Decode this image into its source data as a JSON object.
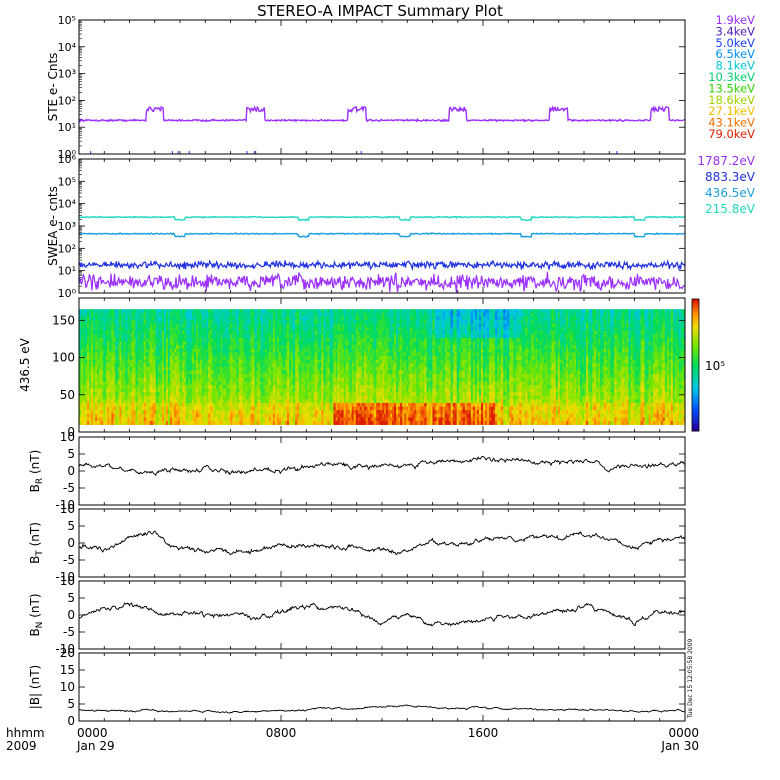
{
  "title": "STEREO-A IMPACT Summary Plot",
  "stamp": "Tue Dec 15 12:05:58 2009",
  "chart_data": {
    "type": "line",
    "x_unit": "hhmm",
    "x_year": "2009",
    "x_ticks": [
      {
        "time": "0000",
        "date": "Jan 29"
      },
      {
        "time": "0800",
        "date": ""
      },
      {
        "time": "1600",
        "date": ""
      },
      {
        "time": "0000",
        "date": "Jan 30"
      }
    ],
    "x_range_hours": [
      0,
      24
    ],
    "panels": [
      {
        "id": "ste",
        "ylabel": "STE e- Cnts",
        "yscale": "log",
        "ylim": [
          1,
          100000
        ],
        "ytick_labels": [
          "10⁰",
          "10¹",
          "10²",
          "10³",
          "10⁴",
          "10⁵"
        ],
        "legend": [
          {
            "label": "1.9keV",
            "color": "#9b30ff"
          },
          {
            "label": "3.4keV",
            "color": "#5020c0"
          },
          {
            "label": "5.0keV",
            "color": "#1e40ff"
          },
          {
            "label": "6.5keV",
            "color": "#0090ff"
          },
          {
            "label": "8.1keV",
            "color": "#00c8d8"
          },
          {
            "label": "10.3keV",
            "color": "#00d070"
          },
          {
            "label": "13.5keV",
            "color": "#30d000"
          },
          {
            "label": "18.6keV",
            "color": "#a0d000"
          },
          {
            "label": "27.1keV",
            "color": "#f0c000"
          },
          {
            "label": "43.1keV",
            "color": "#f07000"
          },
          {
            "label": "79.0keV",
            "color": "#e02000"
          }
        ],
        "series": [
          {
            "name": "1.9keV",
            "level": 18,
            "noise": 0.05,
            "bumps": [
              3.0,
              7.0,
              11.0,
              15.0,
              19.0,
              23.0
            ],
            "bump_height": 48
          }
        ]
      },
      {
        "id": "swea",
        "ylabel": "SWEA e- cnts",
        "yscale": "log",
        "ylim": [
          1,
          1000000
        ],
        "ytick_labels": [
          "10⁰",
          "10¹",
          "10²",
          "10³",
          "10⁴",
          "10⁵",
          "10⁶"
        ],
        "legend": [
          {
            "label": "1787.2eV",
            "color": "#9b30ff"
          },
          {
            "label": "883.3eV",
            "color": "#1e30e0"
          },
          {
            "label": "436.5eV",
            "color": "#1aa0e0"
          },
          {
            "label": "215.8eV",
            "color": "#20d8c0"
          }
        ],
        "series": [
          {
            "name": "215.8eV",
            "level": 2500,
            "noise": 0.04
          },
          {
            "name": "436.5eV",
            "level": 450,
            "noise": 0.04
          },
          {
            "name": "883.3eV",
            "level": 18,
            "noise": 0.25
          },
          {
            "name": "1787.2eV",
            "level": 3,
            "noise": 0.55
          }
        ]
      },
      {
        "id": "pad",
        "type": "heatmap",
        "ylabel": "436.5 eV",
        "ylim": [
          0,
          180
        ],
        "yticks": [
          0,
          50,
          100,
          150
        ],
        "colorbar_label": "10⁵"
      },
      {
        "id": "br",
        "ylabel_main": "B",
        "ylabel_sub": "R",
        "ylabel_unit": " (nT)",
        "ylim": [
          -10,
          10
        ],
        "yticks": [
          10,
          5,
          0,
          -5,
          -10
        ],
        "series": [
          {
            "hours": [
              0,
              1,
              2,
              3,
              4,
              5,
              6,
              7,
              8,
              9,
              10,
              11,
              12,
              13,
              14,
              15,
              16,
              17,
              18,
              19,
              20,
              21,
              22,
              23,
              24
            ],
            "values": [
              1.5,
              1.8,
              0.5,
              0,
              0.5,
              0.8,
              -0.5,
              0.5,
              0.5,
              1.2,
              2,
              1.5,
              1.5,
              2,
              2.5,
              3,
              3.5,
              3,
              2.5,
              2.5,
              2.5,
              1,
              2,
              2,
              2
            ]
          }
        ]
      },
      {
        "id": "bt",
        "ylabel_main": "B",
        "ylabel_sub": "T",
        "ylabel_unit": " (nT)",
        "ylim": [
          -10,
          10
        ],
        "yticks": [
          10,
          5,
          0,
          -5,
          -10
        ],
        "series": [
          {
            "hours": [
              0,
              1,
              2,
              3,
              4,
              5,
              6,
              7,
              8,
              9,
              10,
              11,
              12,
              13,
              14,
              15,
              16,
              17,
              18,
              19,
              20,
              21,
              22,
              23,
              24
            ],
            "values": [
              -1,
              -2,
              2,
              3,
              -1.5,
              -2,
              -2.5,
              -2,
              -1,
              -0.5,
              -1,
              -1.5,
              -2.5,
              -3,
              0,
              -0.5,
              1,
              1,
              1.5,
              2,
              2.5,
              1.5,
              -1,
              1,
              1
            ]
          }
        ]
      },
      {
        "id": "bn",
        "ylabel_main": "B",
        "ylabel_sub": "N",
        "ylabel_unit": " (nT)",
        "ylim": [
          -10,
          10
        ],
        "yticks": [
          10,
          5,
          0,
          -5,
          -10
        ],
        "series": [
          {
            "hours": [
              0,
              1,
              2,
              3,
              4,
              5,
              6,
              7,
              8,
              9,
              10,
              11,
              12,
              13,
              14,
              15,
              16,
              17,
              18,
              19,
              20,
              21,
              22,
              23,
              24
            ],
            "values": [
              -1,
              2,
              3,
              1,
              0.5,
              0,
              0.5,
              -1,
              1,
              2.5,
              2.5,
              1,
              -2,
              0.5,
              -3,
              -2,
              -1.5,
              -0.5,
              0,
              1.5,
              2.5,
              1,
              -2,
              1,
              1
            ]
          }
        ]
      },
      {
        "id": "bmag",
        "ylabel_main": "|B|",
        "ylabel_sub": "",
        "ylabel_unit": " (nT)",
        "ylim": [
          0,
          20
        ],
        "yticks": [
          20,
          15,
          10,
          5,
          0
        ],
        "series": [
          {
            "hours": [
              0,
              1,
              2,
              3,
              4,
              5,
              6,
              7,
              8,
              9,
              10,
              11,
              12,
              13,
              14,
              15,
              16,
              17,
              18,
              19,
              20,
              21,
              22,
              23,
              24
            ],
            "values": [
              3.2,
              3,
              3,
              3.3,
              2.8,
              3,
              2.6,
              2.8,
              3,
              3.4,
              3.8,
              3.6,
              4.2,
              4.5,
              4,
              3.8,
              4,
              3.6,
              3.4,
              3.2,
              3.4,
              3.2,
              2.8,
              3,
              2.8
            ]
          }
        ]
      }
    ]
  }
}
